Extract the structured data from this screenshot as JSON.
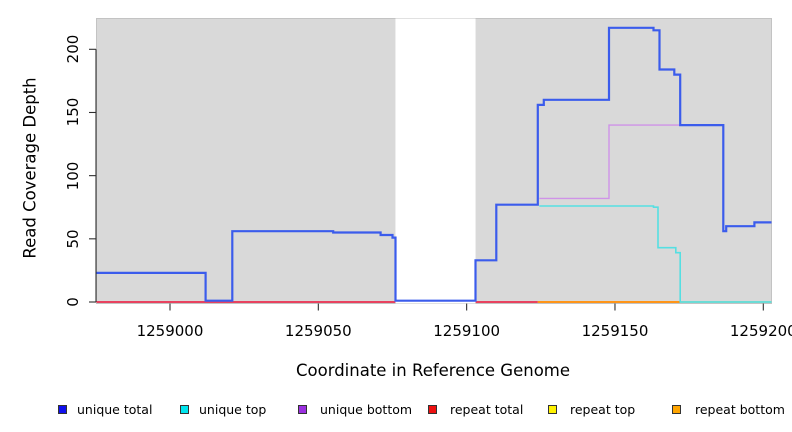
{
  "chart_data": {
    "type": "line",
    "subtype": "step-coverage",
    "title": "",
    "xlabel": "Coordinate in Reference Genome",
    "ylabel": "Read Coverage Depth",
    "xlim": [
      1258975,
      1259203
    ],
    "ylim": [
      0,
      225
    ],
    "xticks": [
      1259000,
      1259050,
      1259100,
      1259150,
      1259200
    ],
    "yticks": [
      0,
      50,
      100,
      150,
      200
    ],
    "panel_background": "#d9d9d9",
    "gap_region": {
      "x0": 1259076,
      "x1": 1259103,
      "color": "#ffffff"
    },
    "legend_position": "bottom",
    "grid": false,
    "series": [
      {
        "name": "unique total",
        "color": "#3b5cec",
        "steps": [
          [
            1258975,
            23
          ],
          [
            1259012,
            1
          ],
          [
            1259021,
            56
          ],
          [
            1259055,
            55
          ],
          [
            1259071,
            53
          ],
          [
            1259075,
            51
          ],
          [
            1259076,
            1
          ],
          [
            1259103,
            33
          ],
          [
            1259110,
            77
          ],
          [
            1259124,
            156
          ],
          [
            1259126,
            160
          ],
          [
            1259148,
            217
          ],
          [
            1259163,
            215
          ],
          [
            1259165,
            184
          ],
          [
            1259170,
            180
          ],
          [
            1259172,
            140
          ],
          [
            1259186.5,
            56
          ],
          [
            1259187.5,
            60
          ],
          [
            1259197,
            63
          ],
          [
            1259203,
            63
          ]
        ]
      },
      {
        "name": "unique top",
        "color": "#55dfe2",
        "steps": [
          [
            1259124.5,
            76
          ],
          [
            1259163,
            75
          ],
          [
            1259164.5,
            43
          ],
          [
            1259170.5,
            39
          ],
          [
            1259172,
            0
          ],
          [
            1259203,
            0
          ]
        ]
      },
      {
        "name": "unique bottom",
        "color": "#cf93e8",
        "steps": [
          [
            1259124.5,
            82
          ],
          [
            1259148,
            140
          ],
          [
            1259186.5,
            56
          ],
          [
            1259187.5,
            60
          ],
          [
            1259197,
            63
          ],
          [
            1259203,
            63
          ]
        ]
      },
      {
        "name": "repeat total",
        "color": "#e8425f",
        "steps": [
          [
            1258975,
            0
          ],
          [
            1259124,
            0
          ]
        ]
      },
      {
        "name": "repeat top",
        "color": "#8ccf8f",
        "steps": [
          [
            1259172,
            0
          ],
          [
            1259203,
            0
          ]
        ]
      },
      {
        "name": "repeat bottom",
        "color": "#ff9518",
        "steps": [
          [
            1259124,
            0
          ],
          [
            1259172,
            0
          ]
        ]
      }
    ]
  },
  "legend": {
    "items": [
      {
        "label": "unique total",
        "color": "#1111ee"
      },
      {
        "label": "unique top",
        "color": "#00e5ee"
      },
      {
        "label": "unique bottom",
        "color": "#9b30e0"
      },
      {
        "label": "repeat total",
        "color": "#ee1111"
      },
      {
        "label": "repeat top",
        "color": "#fff200"
      },
      {
        "label": "repeat bottom",
        "color": "#ffa500"
      }
    ]
  }
}
